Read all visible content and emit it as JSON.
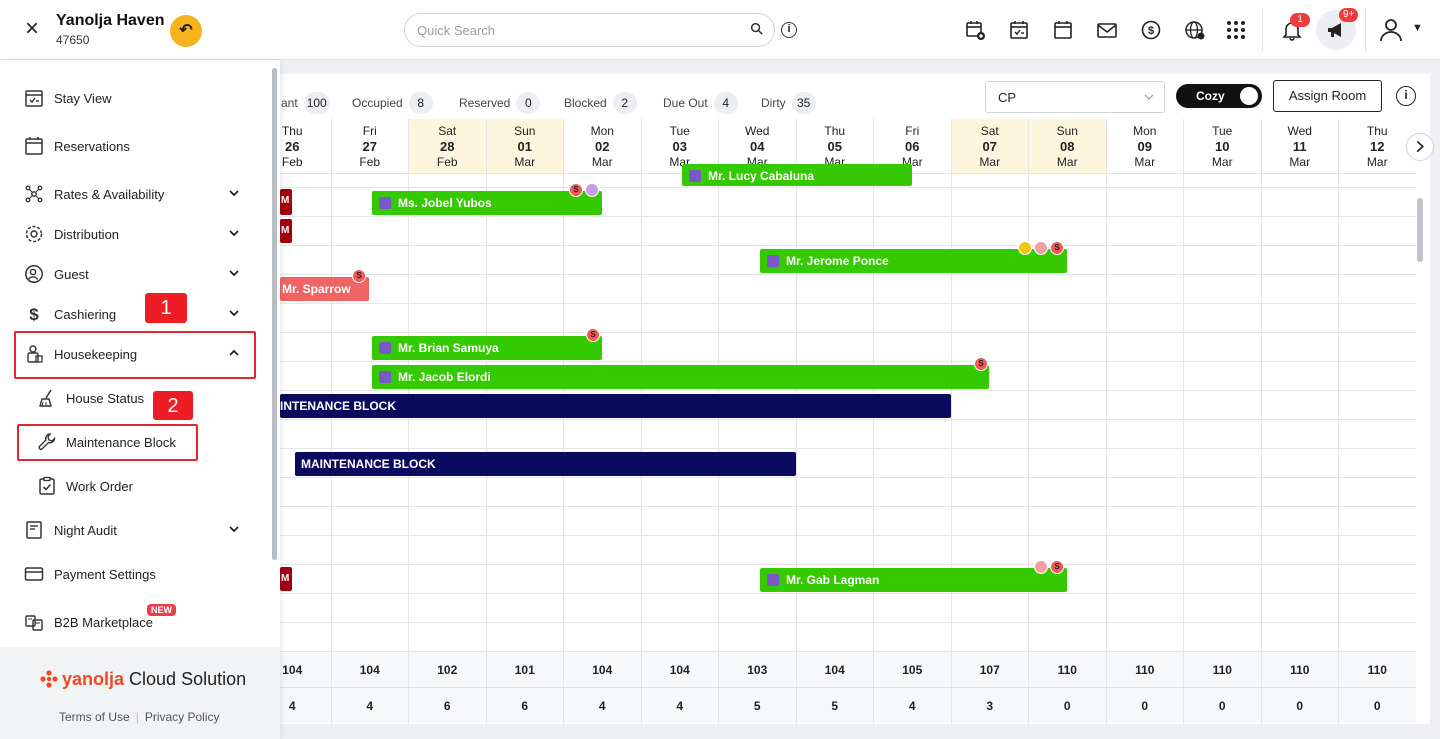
{
  "header": {
    "hotel_name": "Yanolja Haven",
    "hotel_id": "47650",
    "search_placeholder": "Quick Search",
    "notification_count": "1",
    "announcement_count": "9+"
  },
  "sidebar": {
    "items": [
      {
        "label": "Stay View",
        "icon": "calendar-check-icon"
      },
      {
        "label": "Reservations",
        "icon": "calendar-icon"
      },
      {
        "label": "Rates & Availability",
        "icon": "network-icon"
      },
      {
        "label": "Distribution",
        "icon": "gear-icon"
      },
      {
        "label": "Guest",
        "icon": "guest-icon"
      },
      {
        "label": "Cashiering",
        "icon": "dollar-icon"
      },
      {
        "label": "Housekeeping",
        "icon": "housekeeper-icon"
      },
      {
        "label": "House Status",
        "icon": "broom-icon"
      },
      {
        "label": "Maintenance Block",
        "icon": "wrench-icon"
      },
      {
        "label": "Work Order",
        "icon": "clipboard-check-icon"
      },
      {
        "label": "Night Audit",
        "icon": "document-icon"
      },
      {
        "label": "Payment Settings",
        "icon": "card-icon"
      },
      {
        "label": "B2B Marketplace",
        "icon": "store-icon"
      }
    ],
    "new_badge": "NEW",
    "steps": [
      "1",
      "2"
    ],
    "brand_a": "yanolja",
    "brand_b": " Cloud Solution",
    "terms": "Terms of Use",
    "privacy": "Privacy Policy"
  },
  "stats": [
    {
      "label": "ant",
      "value": "100"
    },
    {
      "label": "Occupied",
      "value": "8"
    },
    {
      "label": "Reserved",
      "value": "0"
    },
    {
      "label": "Blocked",
      "value": "2"
    },
    {
      "label": "Due Out",
      "value": "4"
    },
    {
      "label": "Dirty",
      "value": "35"
    }
  ],
  "controls": {
    "rate_plan": "CP",
    "view_toggle": "Cozy",
    "assign_room": "Assign Room"
  },
  "days": [
    {
      "dow": "Thu",
      "day": "26",
      "mon": "Feb",
      "weekend": false
    },
    {
      "dow": "Fri",
      "day": "27",
      "mon": "Feb",
      "weekend": false
    },
    {
      "dow": "Sat",
      "day": "28",
      "mon": "Feb",
      "weekend": true
    },
    {
      "dow": "Sun",
      "day": "01",
      "mon": "Mar",
      "weekend": true
    },
    {
      "dow": "Mon",
      "day": "02",
      "mon": "Mar",
      "weekend": false
    },
    {
      "dow": "Tue",
      "day": "03",
      "mon": "Mar",
      "weekend": false
    },
    {
      "dow": "Wed",
      "day": "04",
      "mon": "Mar",
      "weekend": false
    },
    {
      "dow": "Thu",
      "day": "05",
      "mon": "Mar",
      "weekend": false
    },
    {
      "dow": "Fri",
      "day": "06",
      "mon": "Mar",
      "weekend": false
    },
    {
      "dow": "Sat",
      "day": "07",
      "mon": "Mar",
      "weekend": true
    },
    {
      "dow": "Sun",
      "day": "08",
      "mon": "Mar",
      "weekend": true
    },
    {
      "dow": "Mon",
      "day": "09",
      "mon": "Mar",
      "weekend": false
    },
    {
      "dow": "Tue",
      "day": "10",
      "mon": "Mar",
      "weekend": false
    },
    {
      "dow": "Wed",
      "day": "11",
      "mon": "Mar",
      "weekend": false
    },
    {
      "dow": "Thu",
      "day": "12",
      "mon": "Mar",
      "weekend": false
    }
  ],
  "reservations": [
    {
      "name": "Mr. Lucy Cabaluna",
      "color": "green"
    },
    {
      "name": "Ms. Jobel Yubos",
      "color": "green"
    },
    {
      "name": "Mr. Jerome Ponce",
      "color": "green"
    },
    {
      "name": "Mr. Sparrow",
      "color": "pink"
    },
    {
      "name": "Mr. Brian Samuya",
      "color": "green"
    },
    {
      "name": "Mr. Jacob Elordi",
      "color": "green"
    },
    {
      "name": "INTENANCE BLOCK",
      "color": "navy"
    },
    {
      "name": "MAINTENANCE BLOCK",
      "color": "navy"
    },
    {
      "name": "Mr. Gab Lagman",
      "color": "green"
    }
  ],
  "available_row": [
    "104",
    "104",
    "102",
    "101",
    "104",
    "104",
    "103",
    "104",
    "105",
    "107",
    "110",
    "110",
    "110",
    "110",
    "110"
  ],
  "occupied_row": [
    "4",
    "4",
    "6",
    "6",
    "4",
    "4",
    "5",
    "5",
    "4",
    "3",
    "0",
    "0",
    "0",
    "0",
    "0"
  ],
  "edge_marker": "M",
  "dot_letter": "S"
}
